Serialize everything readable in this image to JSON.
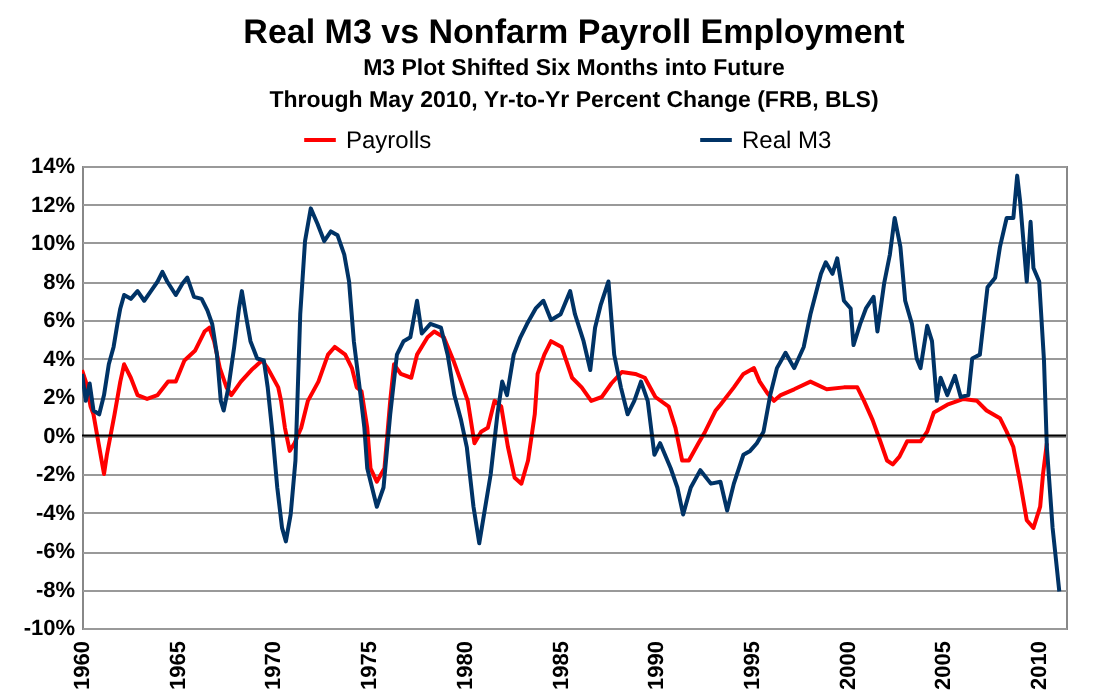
{
  "chart_data": {
    "type": "line",
    "title": "Real M3 vs Nonfarm Payroll Employment",
    "subtitle": "M3 Plot Shifted Six Months into Future\nThrough May 2010, Yr-to-Yr  Percent Change (FRB, BLS)",
    "xlim": [
      1960,
      2011.4
    ],
    "xticks": [
      1960,
      1965,
      1970,
      1975,
      1980,
      1985,
      1990,
      1995,
      2000,
      2005,
      2010
    ],
    "ylim": [
      -10,
      14
    ],
    "yticks": [
      {
        "value": -10,
        "label": "-10%"
      },
      {
        "value": -8,
        "label": "-8%"
      },
      {
        "value": -6,
        "label": "-6%"
      },
      {
        "value": -4,
        "label": "-4%"
      },
      {
        "value": -2,
        "label": "-2%"
      },
      {
        "value": 0,
        "label": "0%"
      },
      {
        "value": 2,
        "label": "2%"
      },
      {
        "value": 4,
        "label": "4%"
      },
      {
        "value": 6,
        "label": "6%"
      },
      {
        "value": 8,
        "label": "8%"
      },
      {
        "value": 10,
        "label": "10%"
      },
      {
        "value": 12,
        "label": "12%"
      },
      {
        "value": 14,
        "label": "14%"
      }
    ],
    "grid": "y",
    "legend": "top",
    "line_style": "solid",
    "marker": "none",
    "ref_lines": [
      {
        "axis": "y",
        "value": 0,
        "color": "#000000"
      }
    ],
    "series": [
      {
        "name": "Payrolls",
        "color": "#ff0000",
        "x": [
          1960.0,
          1960.2,
          1960.45,
          1960.6,
          1960.9,
          1961.15,
          1961.3,
          1961.7,
          1962.0,
          1962.2,
          1962.55,
          1962.9,
          1963.4,
          1963.95,
          1964.5,
          1964.9,
          1965.35,
          1965.9,
          1966.4,
          1966.65,
          1966.9,
          1967.2,
          1967.55,
          1967.8,
          1968.3,
          1968.85,
          1969.4,
          1969.7,
          1970.25,
          1970.4,
          1970.6,
          1970.85,
          1971.1,
          1971.45,
          1971.8,
          1972.35,
          1972.85,
          1973.2,
          1973.75,
          1974.1,
          1974.35,
          1974.6,
          1974.9,
          1975.07,
          1975.4,
          1975.8,
          1976.1,
          1976.3,
          1976.65,
          1977.2,
          1977.5,
          1978.05,
          1978.4,
          1978.9,
          1979.4,
          1979.8,
          1980.15,
          1980.5,
          1980.85,
          1981.2,
          1981.55,
          1981.9,
          1982.25,
          1982.6,
          1982.95,
          1983.3,
          1983.65,
          1983.8,
          1984.15,
          1984.5,
          1985.05,
          1985.6,
          1986.1,
          1986.6,
          1987.15,
          1987.65,
          1988.2,
          1988.9,
          1989.4,
          1989.95,
          1990.65,
          1991.0,
          1991.35,
          1991.7,
          1992.2,
          1992.55,
          1993.1,
          1993.35,
          1994.05,
          1994.55,
          1995.1,
          1995.4,
          1995.8,
          1996.15,
          1996.5,
          1997.2,
          1998.05,
          1998.9,
          1999.8,
          2000.5,
          2000.85,
          2001.3,
          2001.7,
          2002.05,
          2002.35,
          2002.7,
          2003.1,
          2003.8,
          2004.15,
          2004.5,
          2005.2,
          2006.05,
          2006.75,
          2007.25,
          2007.95,
          2008.3,
          2008.65,
          2009.0,
          2009.35,
          2009.7,
          2010.05,
          2010.2,
          2010.4
        ],
        "values": [
          3.4,
          2.8,
          1.5,
          1.1,
          -0.6,
          -2.0,
          -1.0,
          1.1,
          2.8,
          3.7,
          3.0,
          2.1,
          1.9,
          2.1,
          2.8,
          2.8,
          3.9,
          4.4,
          5.4,
          5.6,
          4.9,
          3.5,
          2.5,
          2.1,
          2.8,
          3.4,
          3.9,
          3.5,
          2.5,
          1.8,
          0.4,
          -0.8,
          -0.4,
          0.4,
          1.8,
          2.8,
          4.2,
          4.6,
          4.2,
          3.5,
          2.5,
          2.3,
          0.4,
          -1.7,
          -2.4,
          -1.7,
          1.8,
          3.7,
          3.2,
          3.0,
          4.2,
          5.1,
          5.4,
          5.1,
          3.9,
          2.8,
          1.8,
          -0.4,
          0.2,
          0.4,
          1.8,
          1.5,
          -0.6,
          -2.2,
          -2.5,
          -1.3,
          1.1,
          3.2,
          4.2,
          4.9,
          4.6,
          3.0,
          2.5,
          1.8,
          2.0,
          2.7,
          3.3,
          3.2,
          3.0,
          2.0,
          1.5,
          0.4,
          -1.3,
          -1.3,
          -0.4,
          0.2,
          1.3,
          1.6,
          2.5,
          3.2,
          3.5,
          2.8,
          2.2,
          1.8,
          2.1,
          2.4,
          2.8,
          2.4,
          2.5,
          2.5,
          1.8,
          0.8,
          -0.3,
          -1.3,
          -1.5,
          -1.1,
          -0.3,
          -0.3,
          0.2,
          1.2,
          1.6,
          1.9,
          1.8,
          1.3,
          0.9,
          0.2,
          -0.6,
          -2.4,
          -4.4,
          -4.8,
          -3.7,
          -2.0,
          -0.4
        ]
      },
      {
        "name": "Real M3",
        "color": "#003366",
        "x": [
          1960.0,
          1960.2,
          1960.4,
          1960.6,
          1960.9,
          1961.15,
          1961.4,
          1961.65,
          1961.85,
          1962.0,
          1962.2,
          1962.55,
          1962.9,
          1963.25,
          1963.6,
          1963.95,
          1964.2,
          1964.45,
          1964.9,
          1965.25,
          1965.5,
          1965.85,
          1966.25,
          1966.55,
          1966.8,
          1967.05,
          1967.25,
          1967.4,
          1967.65,
          1967.95,
          1968.2,
          1968.35,
          1968.55,
          1968.8,
          1969.15,
          1969.5,
          1969.7,
          1969.95,
          1970.2,
          1970.45,
          1970.65,
          1970.9,
          1971.15,
          1971.4,
          1971.65,
          1971.95,
          1972.3,
          1972.65,
          1973.0,
          1973.35,
          1973.7,
          1973.95,
          1974.2,
          1974.5,
          1974.75,
          1974.9,
          1975.4,
          1975.75,
          1976.1,
          1976.45,
          1976.8,
          1977.15,
          1977.5,
          1977.75,
          1978.2,
          1978.75,
          1979.1,
          1979.45,
          1979.8,
          1980.1,
          1980.45,
          1980.75,
          1981.0,
          1981.35,
          1981.7,
          1981.95,
          1982.2,
          1982.55,
          1982.9,
          1983.25,
          1983.7,
          1984.1,
          1984.5,
          1985.0,
          1985.5,
          1985.75,
          1986.2,
          1986.55,
          1986.8,
          1987.1,
          1987.5,
          1987.8,
          1988.15,
          1988.5,
          1988.85,
          1989.2,
          1989.55,
          1989.9,
          1990.2,
          1990.75,
          1991.1,
          1991.4,
          1991.8,
          1992.3,
          1992.85,
          1993.35,
          1993.7,
          1994.05,
          1994.55,
          1994.9,
          1995.25,
          1995.6,
          1995.95,
          1996.3,
          1996.75,
          1997.2,
          1997.7,
          1998.05,
          1998.6,
          1998.85,
          1999.2,
          1999.45,
          1999.8,
          2000.15,
          2000.3,
          2000.65,
          2000.95,
          2001.35,
          2001.55,
          2001.9,
          2002.2,
          2002.45,
          2002.75,
          2003.0,
          2003.35,
          2003.6,
          2003.8,
          2004.15,
          2004.4,
          2004.65,
          2004.85,
          2005.2,
          2005.6,
          2005.9,
          2006.3,
          2006.5,
          2006.9,
          2007.3,
          2007.7,
          2007.95,
          2008.3,
          2008.65,
          2008.85,
          2009.0,
          2009.2,
          2009.35,
          2009.55,
          2009.7,
          2010.0,
          2010.25,
          2010.4,
          2010.7,
          2010.85,
          2011.05
        ],
        "values": [
          3.2,
          1.8,
          2.7,
          1.3,
          1.1,
          2.1,
          3.7,
          4.6,
          5.8,
          6.6,
          7.3,
          7.1,
          7.5,
          7.0,
          7.5,
          8.0,
          8.5,
          8.0,
          7.3,
          7.9,
          8.2,
          7.2,
          7.1,
          6.5,
          5.8,
          4.2,
          1.8,
          1.3,
          2.5,
          4.6,
          6.6,
          7.5,
          6.3,
          4.9,
          4.0,
          3.9,
          2.5,
          0.1,
          -2.7,
          -4.8,
          -5.5,
          -4.1,
          -1.3,
          6.3,
          10.1,
          11.8,
          11.0,
          10.1,
          10.6,
          10.4,
          9.4,
          8.0,
          4.9,
          2.5,
          0.4,
          -1.7,
          -3.7,
          -2.7,
          1.1,
          4.2,
          4.9,
          5.1,
          7.0,
          5.3,
          5.8,
          5.6,
          4.2,
          2.1,
          0.8,
          -0.6,
          -3.7,
          -5.6,
          -4.1,
          -2.0,
          1.1,
          2.8,
          2.1,
          4.2,
          5.1,
          5.8,
          6.6,
          7.0,
          6.0,
          6.3,
          7.5,
          6.3,
          4.9,
          3.4,
          5.6,
          6.8,
          8.0,
          4.2,
          2.5,
          1.1,
          1.8,
          2.8,
          1.8,
          -1.0,
          -0.4,
          -1.7,
          -2.7,
          -4.1,
          -2.7,
          -1.8,
          -2.5,
          -2.4,
          -3.9,
          -2.5,
          -1.0,
          -0.8,
          -0.4,
          0.2,
          2.1,
          3.5,
          4.3,
          3.5,
          4.6,
          6.3,
          8.4,
          9.0,
          8.4,
          9.2,
          7.0,
          6.6,
          4.7,
          5.8,
          6.6,
          7.2,
          5.4,
          7.9,
          9.4,
          11.3,
          9.8,
          7.0,
          5.8,
          4.0,
          3.5,
          5.7,
          4.9,
          1.8,
          3.0,
          2.1,
          3.1,
          2.0,
          2.1,
          4.0,
          4.2,
          7.7,
          8.2,
          9.8,
          11.3,
          11.3,
          13.5,
          12.2,
          9.8,
          8.0,
          11.1,
          8.7,
          8.0,
          3.9,
          -0.6,
          -4.8,
          -6.2,
          -8.1
        ]
      }
    ]
  }
}
